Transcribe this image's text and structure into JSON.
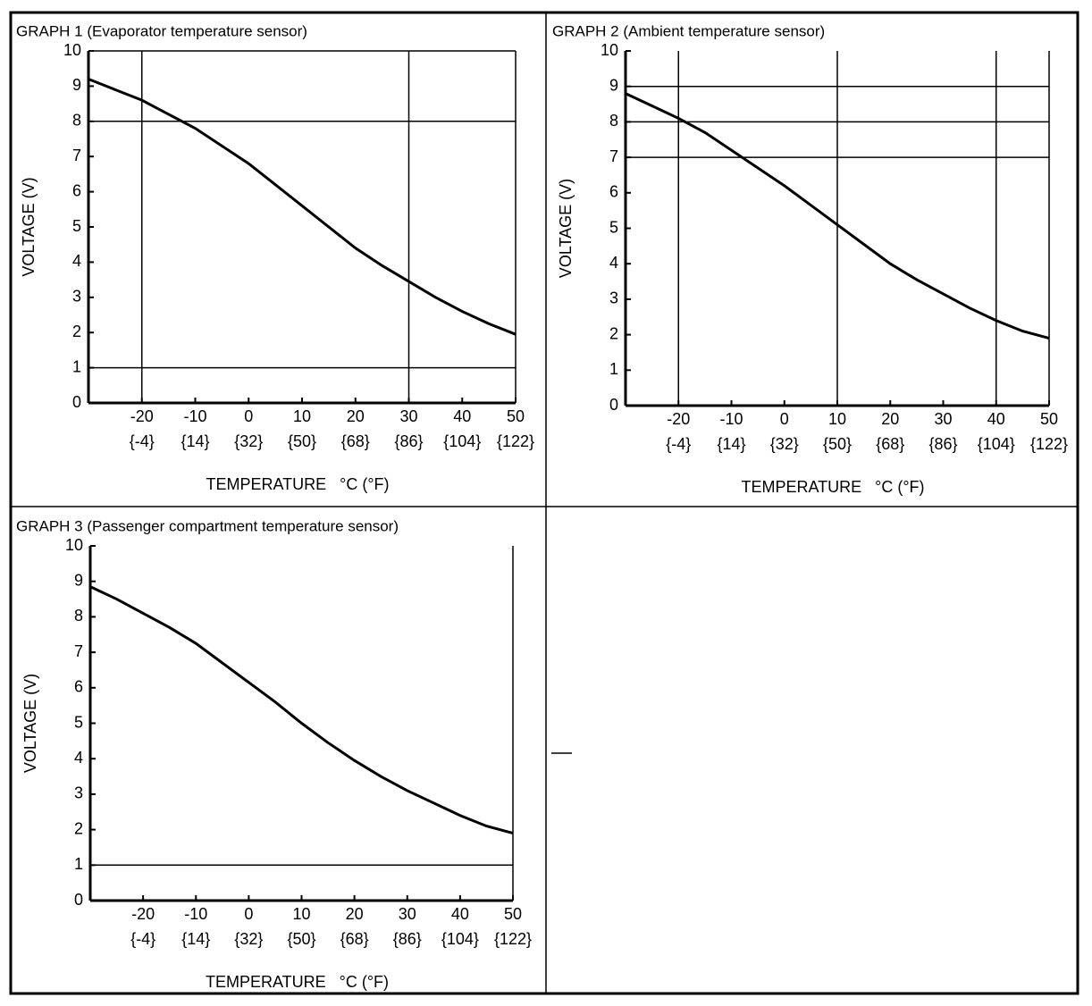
{
  "chart_data": [
    {
      "type": "line",
      "title": "GRAPH 1 (Evaporator temperature sensor)",
      "y_label": "VOLTAGE (V)",
      "x_label": "TEMPERATURE   °C (°F)",
      "x": [
        -30,
        -25,
        -20,
        -15,
        -10,
        -5,
        0,
        5,
        10,
        15,
        20,
        25,
        30,
        35,
        40,
        45,
        50
      ],
      "values": [
        9.2,
        8.9,
        8.6,
        8.2,
        7.8,
        7.3,
        6.8,
        6.2,
        5.6,
        5.0,
        4.4,
        3.9,
        3.45,
        3.0,
        2.6,
        2.25,
        1.95
      ],
      "color": "#000000",
      "xlim": [
        -30,
        50
      ],
      "ylim": [
        0,
        10
      ],
      "xticks": [
        -20,
        -10,
        0,
        10,
        20,
        30,
        40,
        50
      ],
      "xticks_f": [
        "{-4}",
        "{14}",
        "{32}",
        "{50}",
        "{68}",
        "{86}",
        "{104}",
        "{122}"
      ],
      "yticks": [
        0,
        1,
        2,
        3,
        4,
        5,
        6,
        7,
        8,
        9,
        10
      ],
      "vlines": [
        -20,
        30,
        50
      ],
      "hlines": [
        1,
        8,
        10
      ]
    },
    {
      "type": "line",
      "title": "GRAPH 2 (Ambient temperature sensor)",
      "y_label": "VOLTAGE (V)",
      "x_label": "TEMPERATURE   °C (°F)",
      "x": [
        -30,
        -25,
        -20,
        -15,
        -10,
        -5,
        0,
        5,
        10,
        15,
        20,
        25,
        30,
        35,
        40,
        45,
        50
      ],
      "values": [
        8.8,
        8.45,
        8.1,
        7.7,
        7.2,
        6.7,
        6.2,
        5.65,
        5.1,
        4.55,
        4.0,
        3.55,
        3.15,
        2.75,
        2.4,
        2.1,
        1.9
      ],
      "color": "#000000",
      "xlim": [
        -30,
        50
      ],
      "ylim": [
        0,
        10
      ],
      "xticks": [
        -20,
        -10,
        0,
        10,
        20,
        30,
        40,
        50
      ],
      "xticks_f": [
        "{-4}",
        "{14}",
        "{32}",
        "{50}",
        "{68}",
        "{86}",
        "{104}",
        "{122}"
      ],
      "yticks": [
        0,
        1,
        2,
        3,
        4,
        5,
        6,
        7,
        8,
        9,
        10
      ],
      "vlines": [
        -20,
        10,
        40,
        50
      ],
      "hlines": [
        7,
        8,
        9
      ]
    },
    {
      "type": "line",
      "title": "GRAPH 3 (Passenger compartment temperature sensor)",
      "y_label": "VOLTAGE (V)",
      "x_label": "TEMPERATURE   °C (°F)",
      "x": [
        -30,
        -25,
        -20,
        -15,
        -10,
        -5,
        0,
        5,
        10,
        15,
        20,
        25,
        30,
        35,
        40,
        45,
        50
      ],
      "values": [
        8.85,
        8.5,
        8.1,
        7.7,
        7.25,
        6.7,
        6.15,
        5.6,
        5.0,
        4.45,
        3.95,
        3.5,
        3.1,
        2.75,
        2.4,
        2.1,
        1.9
      ],
      "color": "#000000",
      "xlim": [
        -30,
        50
      ],
      "ylim": [
        0,
        10
      ],
      "xticks": [
        -20,
        -10,
        0,
        10,
        20,
        30,
        40,
        50
      ],
      "xticks_f": [
        "{-4}",
        "{14}",
        "{32}",
        "{50}",
        "{68}",
        "{86}",
        "{104}",
        "{122}"
      ],
      "yticks": [
        0,
        1,
        2,
        3,
        4,
        5,
        6,
        7,
        8,
        9,
        10
      ],
      "vlines": [
        50
      ],
      "hlines": [
        1
      ]
    }
  ]
}
